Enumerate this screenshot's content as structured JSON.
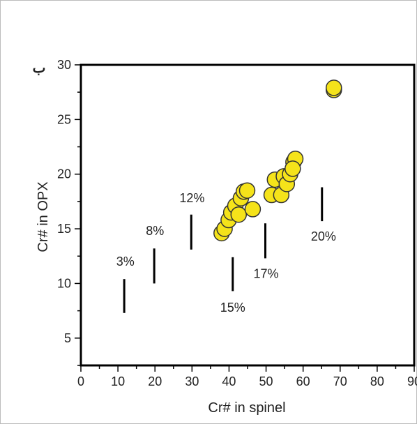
{
  "panel_label": "ب",
  "chart_data": {
    "type": "scatter",
    "xlabel": "Cr# in spinel",
    "ylabel": "Cr# in OPX",
    "xlim": [
      0,
      90
    ],
    "ylim": [
      2.5,
      30
    ],
    "x_ticks": [
      0,
      10,
      20,
      30,
      40,
      50,
      60,
      70,
      80,
      90
    ],
    "y_ticks": [
      5,
      10,
      15,
      20,
      25,
      30
    ],
    "x_tick_labels": [
      "0",
      "10",
      "20",
      "30",
      "40",
      "50",
      "60",
      "70",
      "80",
      "90"
    ],
    "y_tick_labels": [
      "5",
      "10",
      "15",
      "20",
      "25",
      "30"
    ],
    "grid": false,
    "marker_color": "#f5e31a",
    "marker_edge_color": "#333333",
    "points": [
      {
        "x": 38.0,
        "y": 14.6
      },
      {
        "x": 38.8,
        "y": 15.0
      },
      {
        "x": 39.9,
        "y": 15.8
      },
      {
        "x": 40.6,
        "y": 16.5
      },
      {
        "x": 41.7,
        "y": 17.1
      },
      {
        "x": 42.6,
        "y": 16.3
      },
      {
        "x": 43.2,
        "y": 17.8
      },
      {
        "x": 44.0,
        "y": 18.4
      },
      {
        "x": 44.9,
        "y": 18.5
      },
      {
        "x": 46.4,
        "y": 16.8
      },
      {
        "x": 51.5,
        "y": 18.1
      },
      {
        "x": 52.4,
        "y": 19.5
      },
      {
        "x": 54.1,
        "y": 18.1
      },
      {
        "x": 54.8,
        "y": 19.8
      },
      {
        "x": 55.6,
        "y": 19.1
      },
      {
        "x": 56.5,
        "y": 20.0
      },
      {
        "x": 57.4,
        "y": 21.1
      },
      {
        "x": 57.9,
        "y": 21.4
      },
      {
        "x": 57.2,
        "y": 20.5
      },
      {
        "x": 68.3,
        "y": 27.7
      },
      {
        "x": 68.3,
        "y": 27.9
      }
    ],
    "annotations": [
      {
        "label": "3%",
        "x": 11.7,
        "y_low": 7.3,
        "y_high": 10.4,
        "label_x": 12.0,
        "label_y": 12.0
      },
      {
        "label": "8%",
        "x": 19.8,
        "y_low": 10.0,
        "y_high": 13.2,
        "label_x": 20.0,
        "label_y": 14.8
      },
      {
        "label": "12%",
        "x": 29.8,
        "y_low": 13.1,
        "y_high": 16.3,
        "label_x": 30.0,
        "label_y": 17.8
      },
      {
        "label": "15%",
        "x": 41.0,
        "y_low": 9.3,
        "y_high": 12.4,
        "label_x": 41.0,
        "label_y": 7.8
      },
      {
        "label": "17%",
        "x": 49.8,
        "y_low": 12.3,
        "y_high": 15.5,
        "label_x": 50.0,
        "label_y": 10.9
      },
      {
        "label": "20%",
        "x": 65.1,
        "y_low": 15.7,
        "y_high": 18.8,
        "label_x": 65.5,
        "label_y": 14.3
      }
    ]
  }
}
